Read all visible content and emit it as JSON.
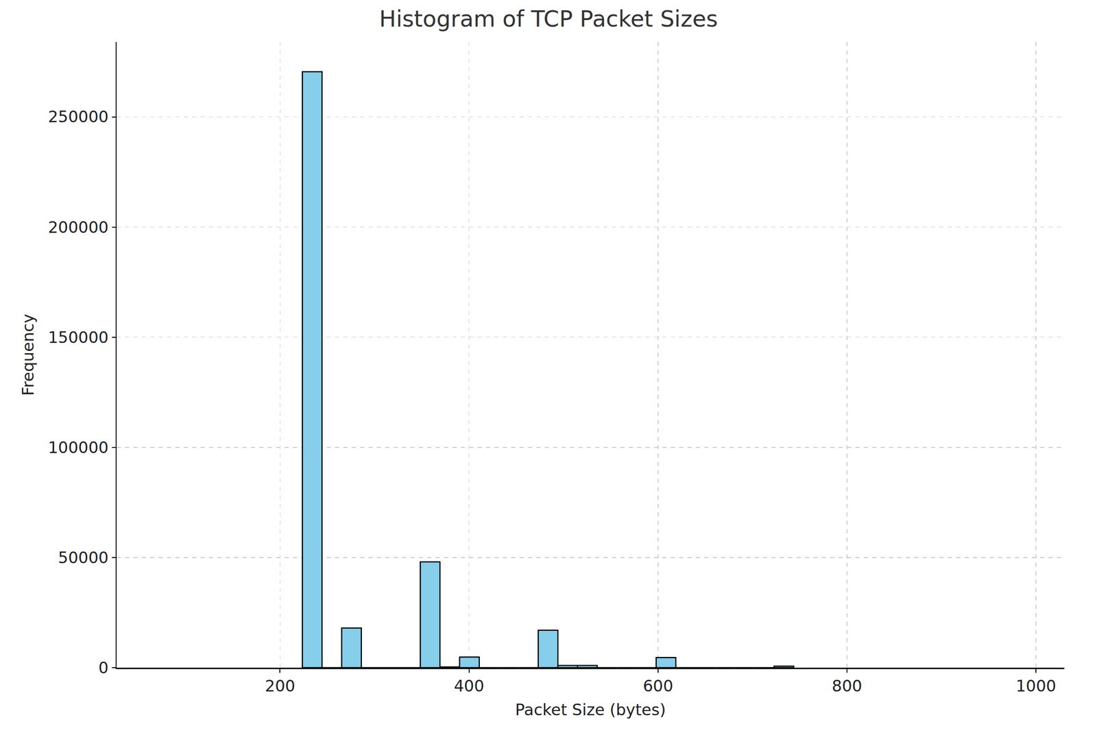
{
  "chart_data": {
    "type": "histogram",
    "title": "Histogram of TCP Packet Sizes",
    "x_label": "Packet Size (bytes)",
    "y_label": "Frequency",
    "bins": [
      223.6,
      244.4,
      265.2,
      286.0,
      306.8,
      327.6,
      348.4,
      369.2,
      390.0,
      410.8,
      431.6,
      452.4,
      473.2,
      494.0,
      514.8,
      535.6,
      556.4,
      577.2,
      598.0,
      618.8,
      639.6,
      660.4,
      681.2,
      702.0,
      722.8,
      743.6
    ],
    "values": [
      270500,
      0,
      18000,
      0,
      0,
      0,
      48000,
      300,
      4800,
      0,
      0,
      0,
      17000,
      1000,
      1000,
      0,
      0,
      0,
      4600,
      0,
      0,
      0,
      0,
      0,
      700
    ],
    "color": "#87ceeb",
    "xlim": [
      27,
      1030
    ],
    "xticks": [
      200,
      400,
      600,
      800,
      1000
    ],
    "ylim": [
      0,
      284000
    ],
    "yticks": [
      0,
      50000,
      100000,
      150000,
      200000,
      250000
    ],
    "grid": true
  }
}
